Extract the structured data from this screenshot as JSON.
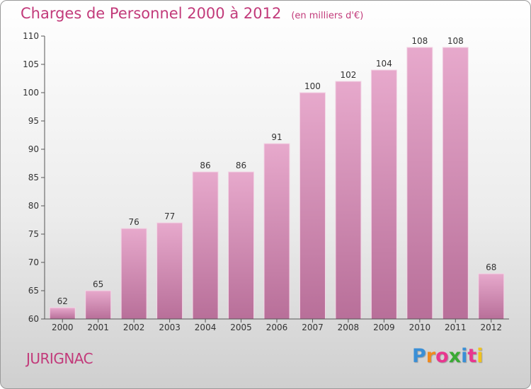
{
  "title": "Charges de Personnel 2000 à 2012",
  "subtitle": "(en milliers d'€)",
  "place": "JURIGNAC",
  "logo": {
    "text": "Proxiti",
    "colors": [
      "#3a8fd6",
      "#f08a1e",
      "#e8368f",
      "#3aaa35",
      "#3a8fd6",
      "#e8368f",
      "#f0c21e"
    ]
  },
  "colors": {
    "bar": "#d98bb5",
    "title": "#c23a7a"
  },
  "chart_data": {
    "type": "bar",
    "categories": [
      "2000",
      "2001",
      "2002",
      "2003",
      "2004",
      "2005",
      "2006",
      "2007",
      "2008",
      "2009",
      "2010",
      "2011",
      "2012"
    ],
    "values": [
      62,
      65,
      76,
      77,
      86,
      86,
      91,
      100,
      102,
      104,
      108,
      108,
      68
    ],
    "title": "Charges de Personnel 2000 à 2012",
    "subtitle": "(en milliers d'€)",
    "xlabel": "",
    "ylabel": "",
    "ylim": [
      60,
      110
    ],
    "yticks": [
      60,
      65,
      70,
      75,
      80,
      85,
      90,
      95,
      100,
      105,
      110
    ],
    "grid": false,
    "legend": "none"
  }
}
